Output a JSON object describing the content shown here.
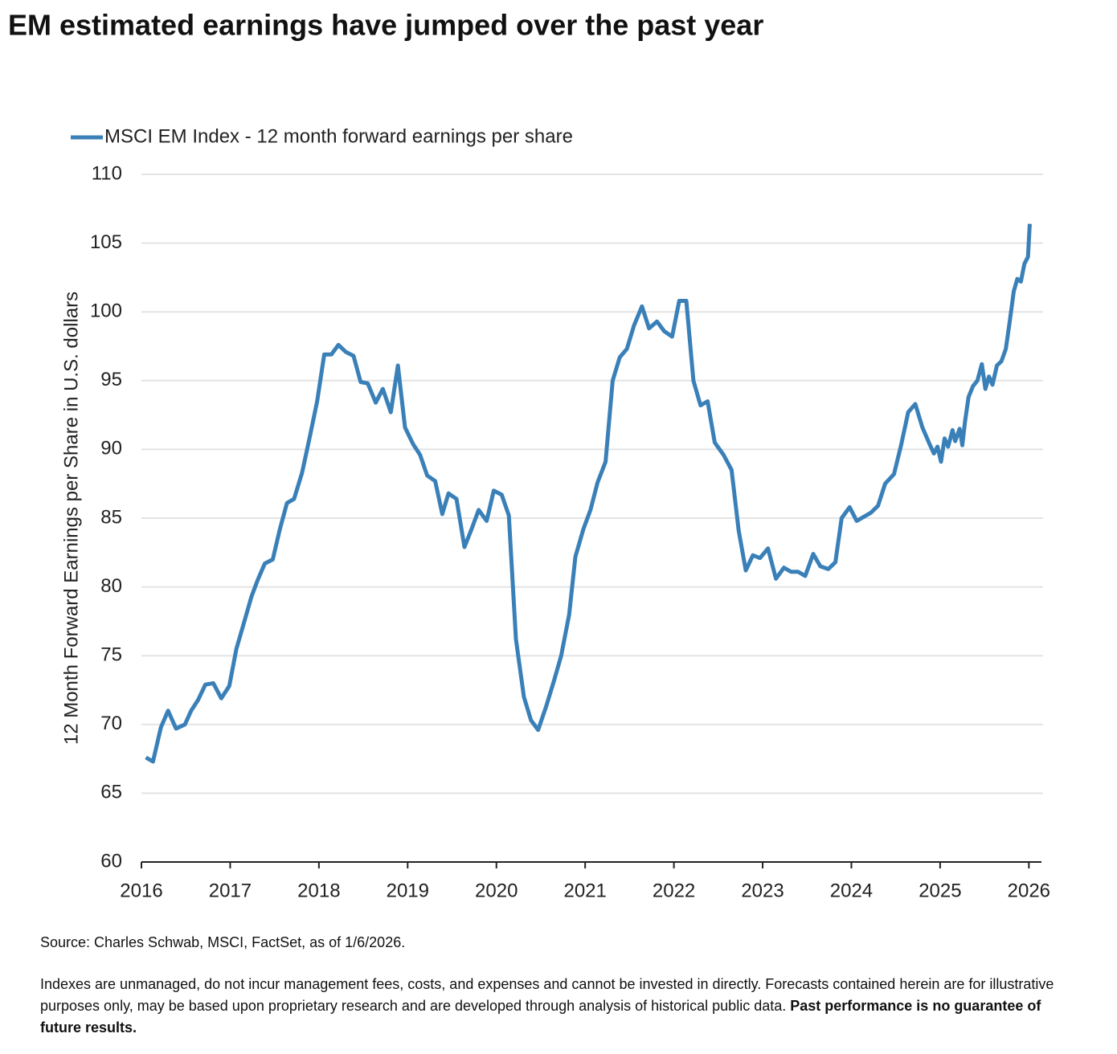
{
  "chart_data": {
    "type": "line",
    "title": "EM estimated earnings have jumped over the past year",
    "y_label": "12 Month Forward Earnings per Share in U.S. dollars",
    "legend": "top-left",
    "grid": true,
    "xlim": [
      2016,
      2026.16
    ],
    "xticks": [
      2016,
      2017,
      2018,
      2019,
      2020,
      2021,
      2022,
      2023,
      2024,
      2025,
      2026
    ],
    "ylim": [
      60,
      110
    ],
    "yticks": [
      60,
      65,
      70,
      75,
      80,
      85,
      90,
      95,
      100,
      105,
      110
    ],
    "x": [
      2016.05,
      2016.13,
      2016.22,
      2016.3,
      2016.39,
      2016.49,
      2016.56,
      2016.64,
      2016.72,
      2016.81,
      2016.9,
      2016.99,
      2017.07,
      2017.16,
      2017.24,
      2017.31,
      2017.39,
      2017.48,
      2017.56,
      2017.64,
      2017.72,
      2017.81,
      2017.9,
      2017.98,
      2018.06,
      2018.14,
      2018.22,
      2018.3,
      2018.39,
      2018.47,
      2018.55,
      2018.64,
      2018.72,
      2018.81,
      2018.89,
      2018.97,
      2019.06,
      2019.14,
      2019.22,
      2019.31,
      2019.39,
      2019.46,
      2019.55,
      2019.64,
      2019.72,
      2019.8,
      2019.89,
      2019.97,
      2020.06,
      2020.14,
      2020.22,
      2020.31,
      2020.39,
      2020.47,
      2020.56,
      2020.65,
      2020.73,
      2020.82,
      2020.89,
      2020.98,
      2021.06,
      2021.14,
      2021.23,
      2021.31,
      2021.39,
      2021.47,
      2021.55,
      2021.64,
      2021.72,
      2021.81,
      2021.89,
      2021.98,
      2022.06,
      2022.14,
      2022.22,
      2022.3,
      2022.38,
      2022.46,
      2022.56,
      2022.65,
      2022.73,
      2022.81,
      2022.89,
      2022.97,
      2023.06,
      2023.15,
      2023.24,
      2023.32,
      2023.4,
      2023.48,
      2023.57,
      2023.65,
      2023.74,
      2023.82,
      2023.89,
      2023.98,
      2024.06,
      2024.14,
      2024.22,
      2024.3,
      2024.38,
      2024.48,
      2024.56,
      2024.64,
      2024.72,
      2024.8,
      2024.88,
      2024.93,
      2024.97,
      2025.01,
      2025.05,
      2025.09,
      2025.14,
      2025.17,
      2025.22,
      2025.25,
      2025.28,
      2025.32,
      2025.37,
      2025.42,
      2025.47,
      2025.51,
      2025.55,
      2025.59,
      2025.64,
      2025.69,
      2025.74,
      2025.78,
      2025.83,
      2025.87,
      2025.91,
      2025.95,
      2025.99,
      2026.01
    ],
    "series": [
      {
        "name": "MSCI EM Index - 12 month forward earnings per share",
        "color": "#3a80b8",
        "values": [
          67.6,
          67.3,
          69.8,
          71.0,
          69.7,
          70.0,
          71.0,
          71.8,
          72.9,
          73.0,
          71.9,
          72.8,
          75.5,
          77.5,
          79.3,
          80.5,
          81.7,
          82.0,
          84.2,
          86.1,
          86.4,
          88.3,
          91.0,
          93.5,
          96.9,
          96.9,
          97.6,
          97.1,
          96.8,
          94.9,
          94.8,
          93.4,
          94.4,
          92.7,
          96.1,
          91.6,
          90.4,
          89.6,
          88.1,
          87.7,
          85.3,
          86.8,
          86.4,
          82.9,
          84.2,
          85.6,
          84.8,
          87.0,
          86.7,
          85.2,
          76.2,
          72.0,
          70.3,
          69.6,
          71.3,
          73.2,
          75.0,
          78.0,
          82.2,
          84.2,
          85.6,
          87.6,
          89.1,
          95.0,
          96.7,
          97.3,
          99.0,
          100.4,
          98.8,
          99.3,
          98.6,
          98.2,
          100.8,
          100.8,
          95.0,
          93.2,
          93.5,
          90.5,
          89.6,
          88.5,
          84.1,
          81.2,
          82.3,
          82.1,
          82.8,
          80.6,
          81.4,
          81.1,
          81.1,
          80.8,
          82.4,
          81.5,
          81.3,
          81.8,
          85.0,
          85.8,
          84.8,
          85.1,
          85.4,
          85.9,
          87.5,
          88.2,
          90.3,
          92.7,
          93.3,
          91.6,
          90.4,
          89.7,
          90.2,
          89.1,
          90.8,
          90.2,
          91.4,
          90.6,
          91.5,
          90.3,
          92.0,
          93.8,
          94.6,
          95.0,
          96.2,
          94.4,
          95.3,
          94.7,
          96.1,
          96.4,
          97.3,
          99.1,
          101.5,
          102.4,
          102.2,
          103.5,
          104.0,
          106.4
        ]
      }
    ]
  },
  "notes": {
    "source": "Source: Charles Schwab, MSCI, FactSet, as of 1/6/2026.",
    "disclaimer": "Indexes are unmanaged, do not incur management fees, costs, and expenses and cannot be invested in directly. Forecasts contained herein are for illustrative purposes only, may be based upon proprietary research and are developed through analysis of historical public data.",
    "disclaimer_bold": "Past performance is no guarantee of future results."
  }
}
